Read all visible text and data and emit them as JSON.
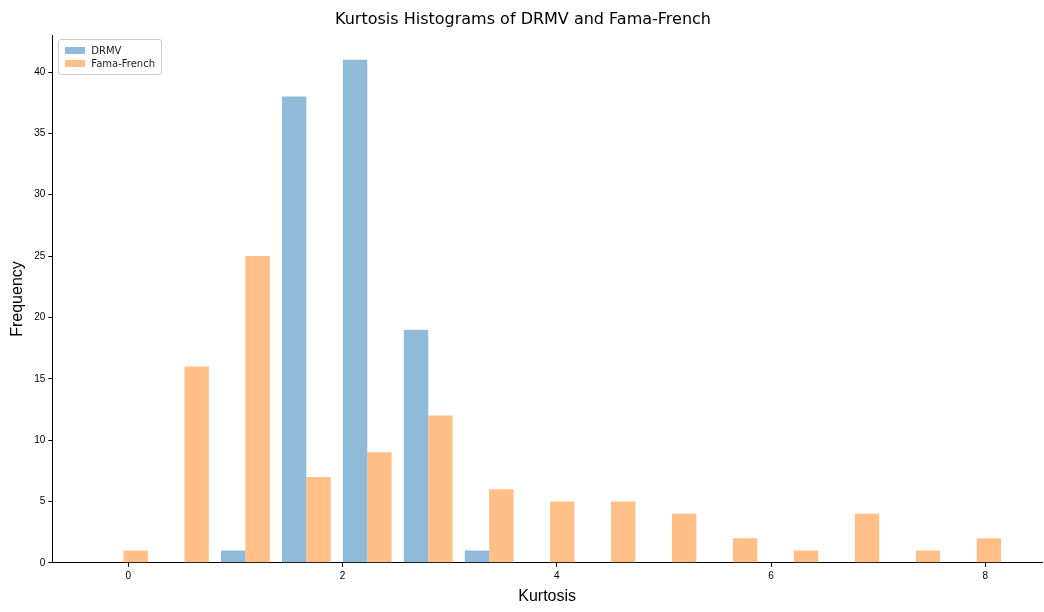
{
  "chart_data": {
    "type": "histogram",
    "title": "Kurtosis Histograms of DRMV and Fama-French",
    "xlabel": "Kurtosis",
    "ylabel": "Frequency",
    "bins": [
      -0.33,
      0.239,
      0.808,
      1.377,
      1.946,
      2.515,
      3.084,
      3.653,
      4.222,
      4.791,
      5.36,
      5.929,
      6.498,
      7.067,
      7.636,
      8.205
    ],
    "series": [
      {
        "name": "DRMV",
        "color": "#8fbbd9",
        "values": [
          0,
          0,
          1,
          38,
          41,
          19,
          1,
          0,
          0,
          0,
          0,
          0,
          0,
          0,
          0
        ]
      },
      {
        "name": "Fama-French",
        "color": "#ffbf86",
        "values": [
          1,
          16,
          25,
          7,
          9,
          12,
          6,
          5,
          5,
          4,
          2,
          1,
          4,
          1,
          2
        ]
      }
    ],
    "xlim": [
      -0.71,
      8.53
    ],
    "ylim": [
      0,
      43
    ],
    "xticks": [
      0,
      2,
      4,
      6,
      8
    ],
    "yticks": [
      0,
      5,
      10,
      15,
      20,
      25,
      30,
      35,
      40
    ],
    "grid": false,
    "legend": "top left"
  }
}
